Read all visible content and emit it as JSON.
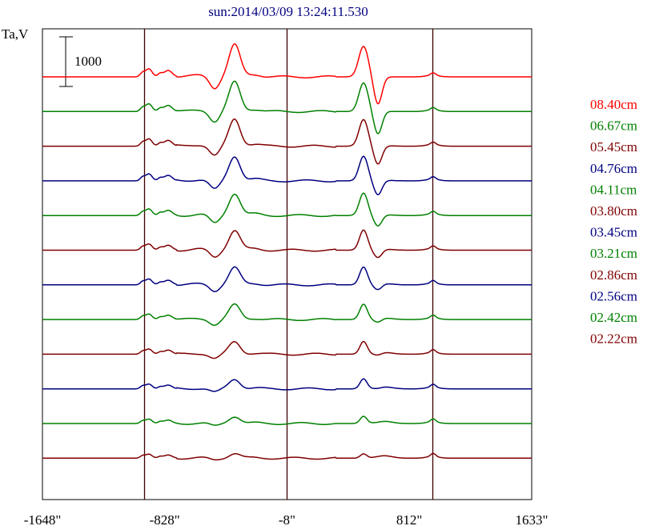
{
  "chart_data": {
    "type": "line",
    "title": "sun:2014/03/09 13:24:11.530",
    "ylabel": "Ta,V",
    "scale_bar_label": "1000",
    "xlim": [
      -1648,
      1633
    ],
    "x_ticks": [
      {
        "value": -1648,
        "label": "-1648\""
      },
      {
        "value": -828,
        "label": "-828\""
      },
      {
        "value": -8,
        "label": "-8\""
      },
      {
        "value": 812,
        "label": "812\""
      },
      {
        "value": 1633,
        "label": "1633\""
      }
    ],
    "reference_lines": [
      -965,
      -8,
      966
    ],
    "series": [
      {
        "name": "08.40cm",
        "color": "#ff0000"
      },
      {
        "name": "06.67cm",
        "color": "#008000"
      },
      {
        "name": "05.45cm",
        "color": "#800000"
      },
      {
        "name": "04.76cm",
        "color": "#000080"
      },
      {
        "name": "04.11cm",
        "color": "#008000"
      },
      {
        "name": "03.80cm",
        "color": "#800000"
      },
      {
        "name": "03.45cm",
        "color": "#000080"
      },
      {
        "name": "03.21cm",
        "color": "#008000"
      },
      {
        "name": "02.86cm",
        "color": "#800000"
      },
      {
        "name": "02.56cm",
        "color": "#000080"
      },
      {
        "name": "02.42cm",
        "color": "#008000"
      },
      {
        "name": "02.22cm",
        "color": "#800000"
      }
    ]
  },
  "colors": {
    "title": "#000080",
    "axis": "#000000",
    "reference_line": "#400000"
  }
}
